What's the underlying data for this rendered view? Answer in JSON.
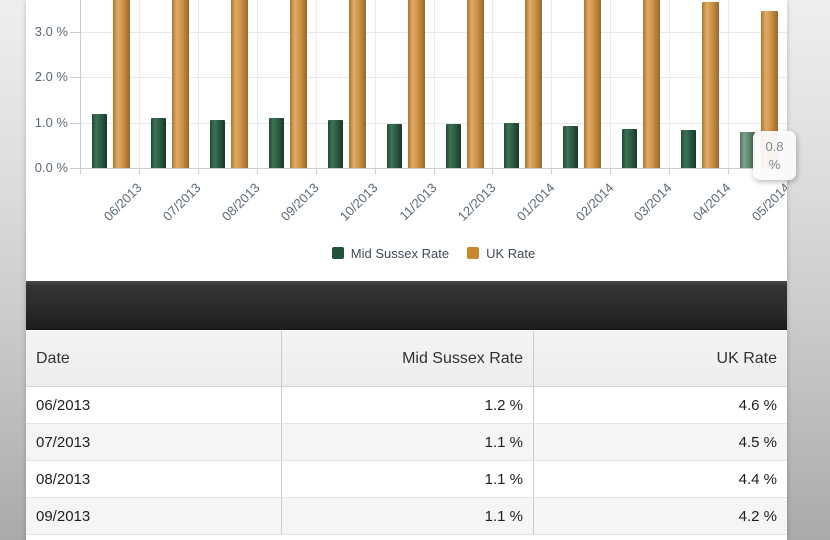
{
  "chart_data": {
    "type": "bar",
    "title": "",
    "xlabel": "",
    "ylabel": "",
    "unit": "%",
    "categories": [
      "06/2013",
      "07/2013",
      "08/2013",
      "09/2013",
      "10/2013",
      "11/2013",
      "12/2013",
      "01/2014",
      "02/2014",
      "03/2014",
      "04/2014",
      "05/2014"
    ],
    "series": [
      {
        "name": "Mid Sussex Rate",
        "color": "#2b5c42",
        "values": [
          1.2,
          1.1,
          1.05,
          1.1,
          1.05,
          0.97,
          0.97,
          1.0,
          0.92,
          0.87,
          0.84,
          0.8
        ]
      },
      {
        "name": "UK Rate",
        "color": "#cd9145",
        "values": [
          4.6,
          4.5,
          4.4,
          4.2,
          4.1,
          4.0,
          3.95,
          3.9,
          3.85,
          3.8,
          3.65,
          3.45
        ]
      }
    ],
    "y_ticks": [
      "0.0 %",
      "1.0 %",
      "2.0 %",
      "3.0 %"
    ],
    "y_tick_values": [
      0,
      1,
      2,
      3
    ],
    "ylim_visible": [
      0,
      3.7
    ],
    "grid": true,
    "legend_position": "bottom",
    "top_cropped": true,
    "highlighted_category": "05/2014"
  },
  "tooltip": {
    "line1": "0.8",
    "line2": "%"
  },
  "table": {
    "columns": [
      "Date",
      "Mid Sussex Rate",
      "UK Rate"
    ],
    "rows": [
      [
        "06/2013",
        "1.2 %",
        "4.6 %"
      ],
      [
        "07/2013",
        "1.1 %",
        "4.5 %"
      ],
      [
        "08/2013",
        "1.1 %",
        "4.4 %"
      ],
      [
        "09/2013",
        "1.1 %",
        "4.2 %"
      ]
    ]
  },
  "theme": {
    "mid_sussex_green": "#1f5238",
    "uk_orange": "#c8882e",
    "axis_text": "#5b6876",
    "toolbar_dark": "#262626"
  }
}
